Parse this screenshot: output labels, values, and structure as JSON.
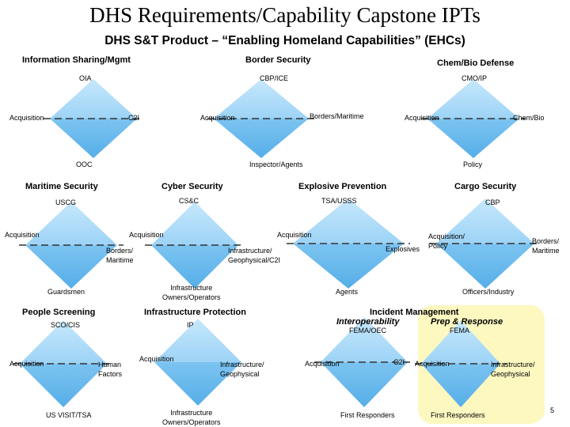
{
  "title": "DHS Requirements/Capability Capstone IPTs",
  "subtitle": "DHS S&T Product – “Enabling Homeland Capabilities” (EHCs)",
  "colors": {
    "diamond_top": "#b8e2fb",
    "diamond_bottom": "#6bbcee",
    "highlight": "#fcf8c0"
  },
  "ipts": [
    {
      "name": "Information Sharing/Mgmt",
      "top": "OIA",
      "left": "Acquisition",
      "right": "C2I",
      "bottom": "OOC"
    },
    {
      "name": "Border Security",
      "top": "CBP/ICE",
      "left": "Acquisition",
      "right": "Borders/Maritime",
      "bottom": "Inspector/Agents"
    },
    {
      "name": "Chem/Bio Defense",
      "top": "CMO/IP",
      "left": "Acquisition",
      "right": "Chem/Bio",
      "bottom": "Policy"
    },
    {
      "name": "Maritime Security",
      "top": "USCG",
      "left": "Acquisition",
      "right": "Borders/\nMaritime",
      "bottom": "Guardsmen"
    },
    {
      "name": "Cyber Security",
      "top": "CS&C",
      "left": "Acquisition",
      "right": "Infrastructure/\nGeophysical/C2I",
      "bottom": "Infrastructure\nOwners/Operators"
    },
    {
      "name": "Explosive Prevention",
      "top": "TSA/USSS",
      "left": "Acquisition",
      "right": "Explosives",
      "bottom": "Agents"
    },
    {
      "name": "Cargo Security",
      "top": "CBP",
      "left": "Acquisition/\nPolicy",
      "right": "Borders/\nMaritime",
      "bottom": "Officers/Industry"
    },
    {
      "name": "People Screening",
      "top": "SCO/CIS",
      "left": "Acquisition",
      "right": "Human\nFactors",
      "bottom": "US VISIT/TSA"
    },
    {
      "name": "Infrastructure Protection",
      "top": "IP",
      "left": "Acquisition",
      "right": "Infrastructure/\nGeophysical",
      "bottom": "Infrastructure\nOwners/Operators"
    }
  ],
  "incident_management": {
    "name": "Incident Management",
    "interop": {
      "name": "Interoperability",
      "top": "FEMA/OEC",
      "left": "Acquisition",
      "right": "C2I",
      "bottom": "First Responders"
    },
    "prep": {
      "name": "Prep & Response",
      "top": "FEMA",
      "left": "Acquisition",
      "right": "Infrastructure/\nGeophysical",
      "bottom": "First Responders"
    }
  },
  "page_number": "5"
}
